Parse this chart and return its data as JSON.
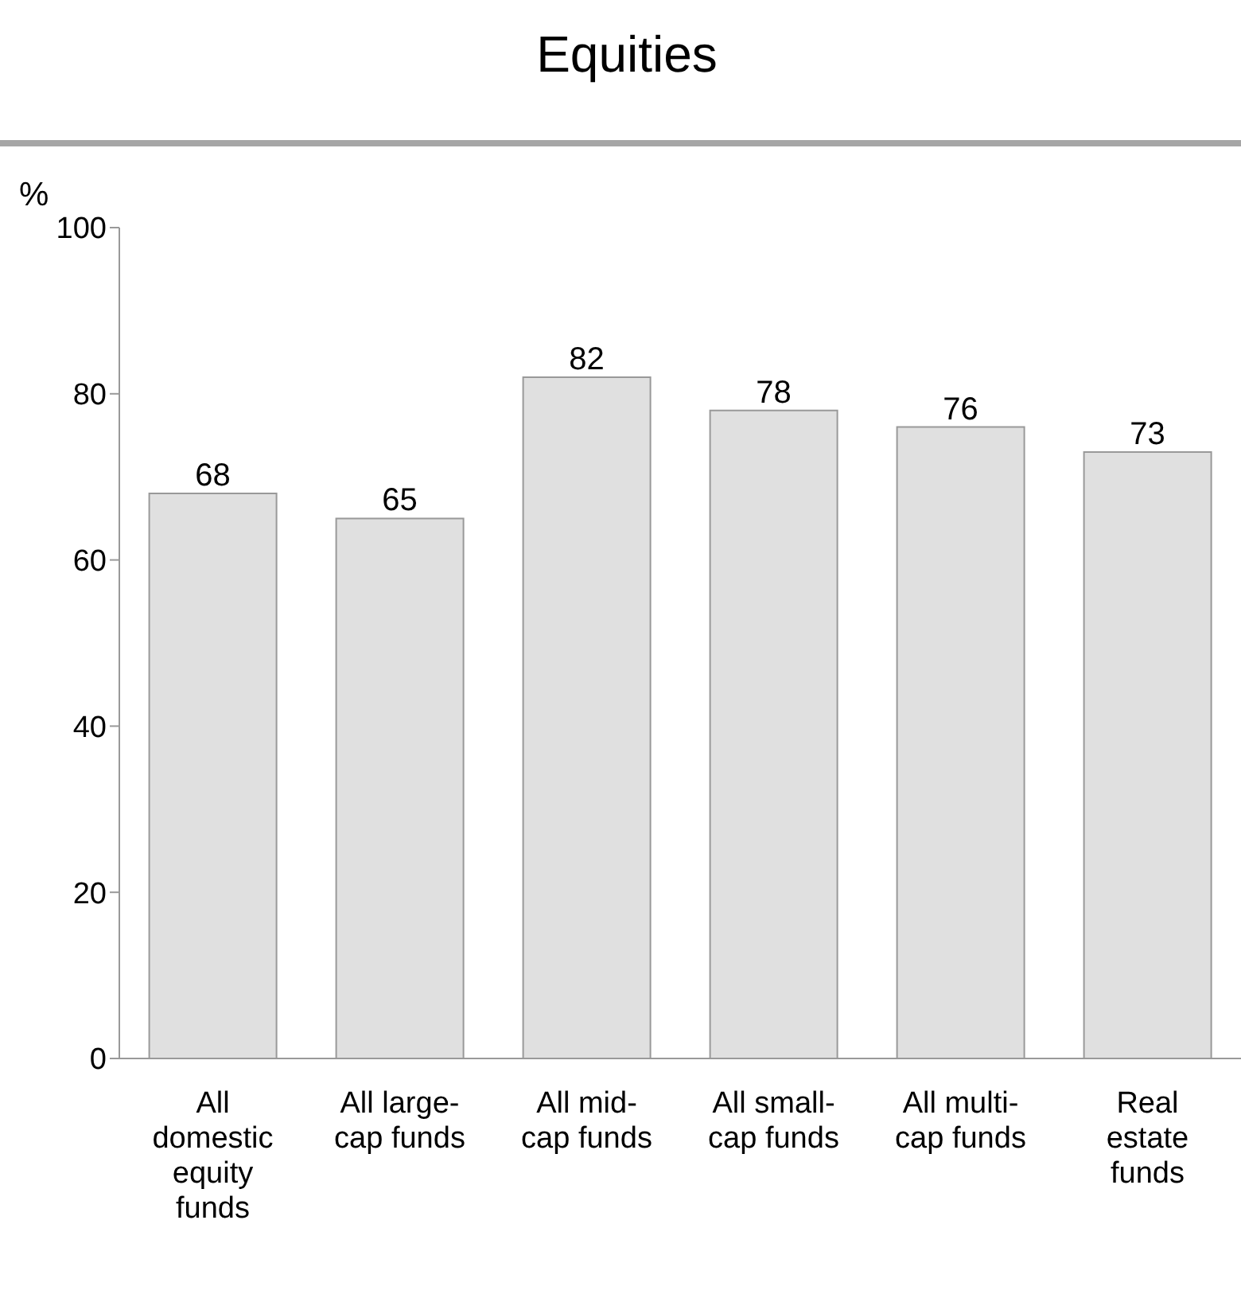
{
  "chart_data": {
    "type": "bar",
    "title": "Equities",
    "ylabel": "%",
    "categories": [
      "All domestic equity funds",
      "All large-cap funds",
      "All mid-cap funds",
      "All small-cap funds",
      "All multi-cap funds",
      "Real estate funds"
    ],
    "values": [
      68,
      65,
      82,
      78,
      76,
      73
    ],
    "color": "#e0e0e0",
    "ylim": [
      0,
      100
    ],
    "yticks": [
      0,
      20,
      40,
      60,
      80,
      100
    ],
    "grid": false,
    "data_labels": true
  }
}
